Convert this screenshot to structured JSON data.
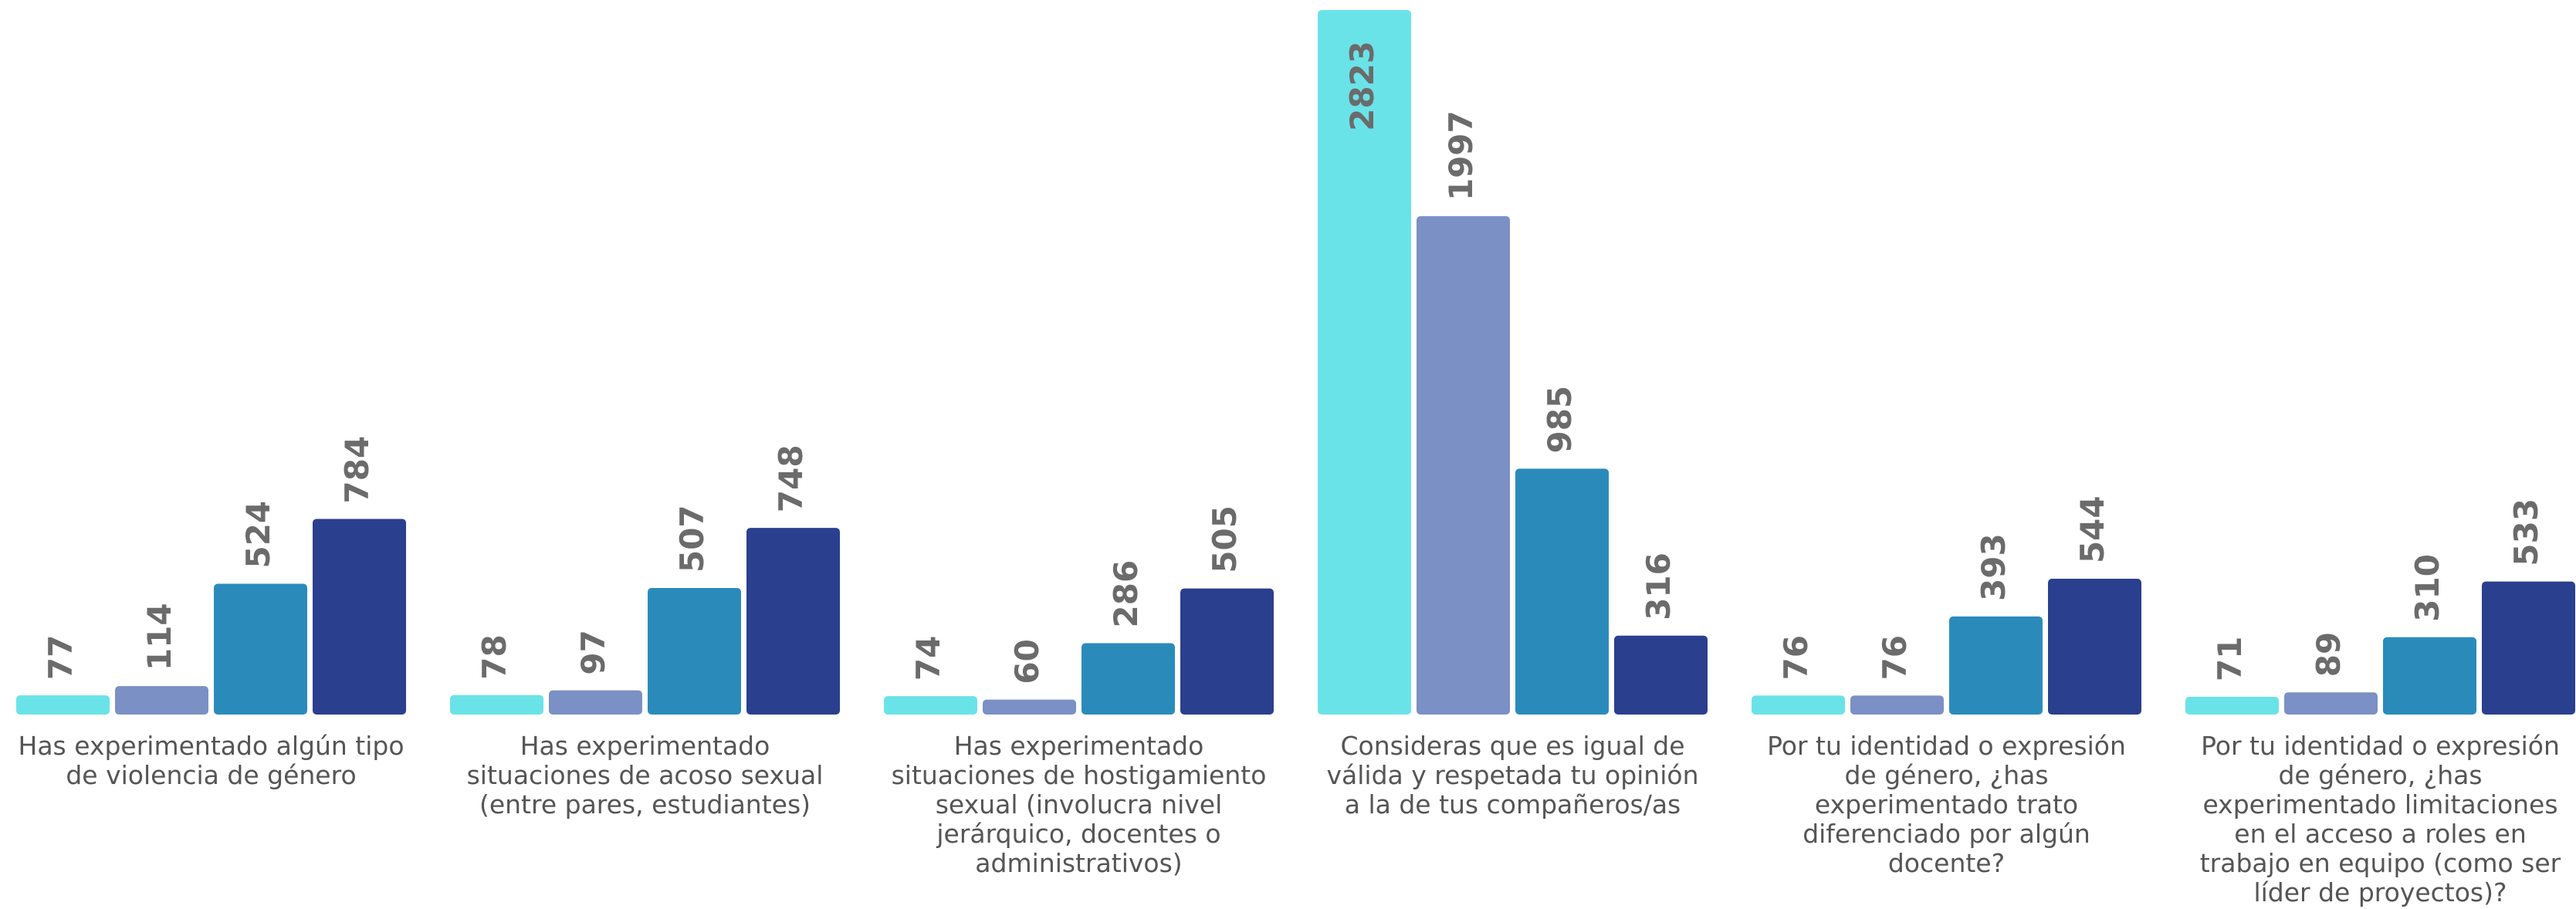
{
  "chart_data": {
    "type": "bar",
    "categories": [
      "Has experimentado algún tipo de violencia de género",
      "Has experimentado situaciones de acoso sexual (entre pares, estudiantes)",
      "Has experimentado situaciones de hostigamiento sexual (involucra nivel jerárquico, docentes o administrativos)",
      "Consideras que es igual de válida y respetada tu opinión a la de tus compañeros/as",
      "Por tu identidad o expresión de género, ¿has experimentado trato diferenciado por algún docente?",
      "Por tu identidad o expresión de género, ¿has experimentado limitaciones en el acceso a roles en trabajo en equipo (como ser líder de proyectos)?"
    ],
    "series": [
      {
        "color": "#6ae3e8",
        "values": [
          77,
          78,
          74,
          2823,
          76,
          71
        ]
      },
      {
        "color": "#7b90c4",
        "values": [
          114,
          97,
          60,
          1997,
          76,
          89
        ]
      },
      {
        "color": "#2a8bbb",
        "values": [
          524,
          507,
          286,
          985,
          393,
          310
        ]
      },
      {
        "color": "#2b3f8f",
        "values": [
          784,
          748,
          505,
          316,
          544,
          533
        ]
      }
    ]
  }
}
